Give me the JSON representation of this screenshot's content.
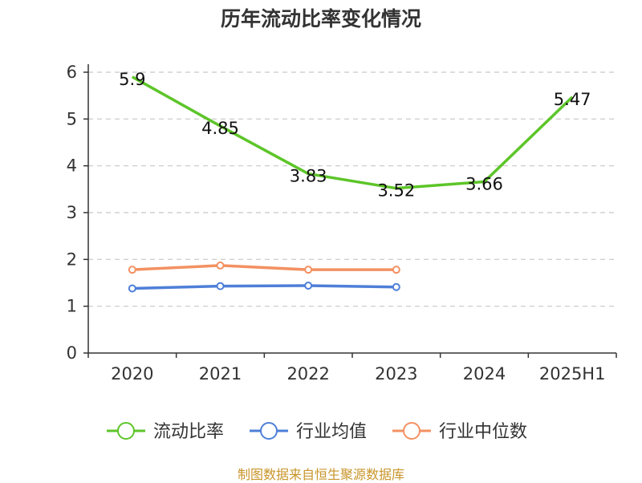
{
  "chart_data": {
    "type": "line",
    "title": "历年流动比率变化情况",
    "categories": [
      "2020",
      "2021",
      "2022",
      "2023",
      "2024",
      "2025H1"
    ],
    "ylim": [
      0,
      6
    ],
    "yticks": [
      "0",
      "1",
      "2",
      "3",
      "4",
      "5",
      "6"
    ],
    "grid": true,
    "legend_position": "bottom",
    "series": [
      {
        "name": "流动比率",
        "color": "#5dc529",
        "values": [
          5.9,
          4.85,
          3.83,
          3.52,
          3.66,
          5.47
        ],
        "labels": [
          "5.9",
          "4.85",
          "3.83",
          "3.52",
          "3.66",
          "5.47"
        ],
        "show_markers": false
      },
      {
        "name": "行业均值",
        "color": "#4e7fd8",
        "values": [
          1.38,
          1.43,
          1.44,
          1.41,
          null,
          null
        ],
        "show_markers": true
      },
      {
        "name": "行业中位数",
        "color": "#f39162",
        "values": [
          1.78,
          1.87,
          1.78,
          1.78,
          null,
          null
        ],
        "show_markers": true
      }
    ]
  },
  "footer": "制图数据来自恒生聚源数据库"
}
